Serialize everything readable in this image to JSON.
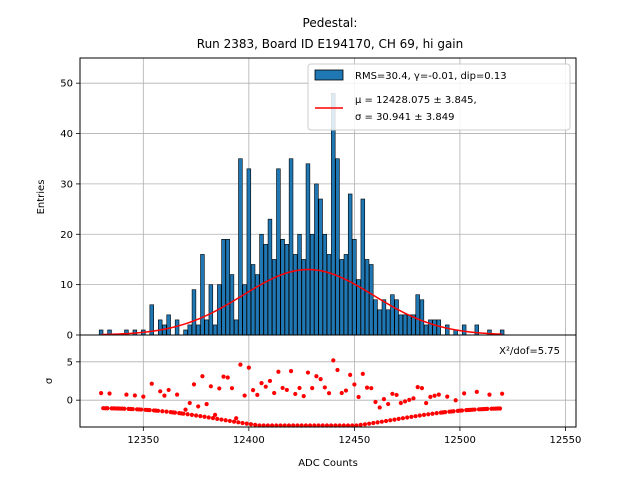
{
  "chart_data": {
    "type": "bar",
    "title": "Pedestal:",
    "subtitle": "Run 2383, Board ID E194170, CH 69, hi gain",
    "xlabel": "ADC Counts",
    "ylabel": "Entries",
    "xlim": [
      12320,
      12555
    ],
    "ylim": [
      0,
      55
    ],
    "xticks": [
      12350,
      12400,
      12450,
      12500,
      12550
    ],
    "yticks": [
      0,
      10,
      20,
      30,
      40,
      50
    ],
    "grid": true,
    "legend_position": "top-right",
    "legend": [
      {
        "label": "RMS=30.4, γ=-0.01, dip=0.13",
        "color": "#1f77b4"
      },
      {
        "label_line1": "μ = 12428.075 ± 3.845,",
        "label_line2": "σ = 30.941 ± 3.849",
        "color": "#ff0000"
      }
    ],
    "histogram": {
      "x": [
        12330,
        12334,
        12342,
        12346,
        12350,
        12354,
        12358,
        12360,
        12362,
        12366,
        12370,
        12372,
        12374,
        12376,
        12378,
        12380,
        12382,
        12384,
        12386,
        12388,
        12390,
        12392,
        12394,
        12396,
        12398,
        12400,
        12402,
        12404,
        12406,
        12408,
        12410,
        12412,
        12414,
        12416,
        12418,
        12420,
        12422,
        12424,
        12426,
        12428,
        12430,
        12432,
        12434,
        12436,
        12438,
        12440,
        12442,
        12444,
        12446,
        12448,
        12450,
        12452,
        12454,
        12456,
        12458,
        12460,
        12462,
        12464,
        12466,
        12468,
        12470,
        12472,
        12474,
        12476,
        12478,
        12480,
        12482,
        12484,
        12486,
        12488,
        12490,
        12494,
        12498,
        12502,
        12508,
        12514,
        12520
      ],
      "values": [
        1,
        1,
        1,
        1,
        1,
        6,
        3,
        2,
        4,
        3,
        1,
        2,
        9,
        2,
        16,
        3,
        10,
        2,
        10,
        19,
        19,
        12,
        3,
        35,
        10,
        33,
        14,
        12,
        20,
        18,
        23,
        15,
        33,
        19,
        18,
        35,
        16,
        20,
        15,
        34,
        20,
        30,
        27,
        20,
        16,
        48,
        35,
        15,
        16,
        28,
        19,
        11,
        27,
        15,
        14,
        7,
        5,
        7,
        5,
        8,
        7,
        4,
        4,
        4,
        4,
        8,
        7,
        2,
        3,
        3,
        3,
        2,
        1,
        2,
        2,
        1,
        1
      ],
      "bar_width": 1.8,
      "color": "#1f77b4"
    },
    "fit": {
      "type": "gaussian",
      "mu": 12428.075,
      "sigma": 30.941,
      "amplitude": 13,
      "color": "#ff0000"
    },
    "residuals": {
      "ylabel": "σ",
      "ylim": [
        -3.5,
        8.5
      ],
      "yticks": [
        0,
        5
      ],
      "annotation": "X²/dof=5.75",
      "color": "#ff0000"
    }
  }
}
